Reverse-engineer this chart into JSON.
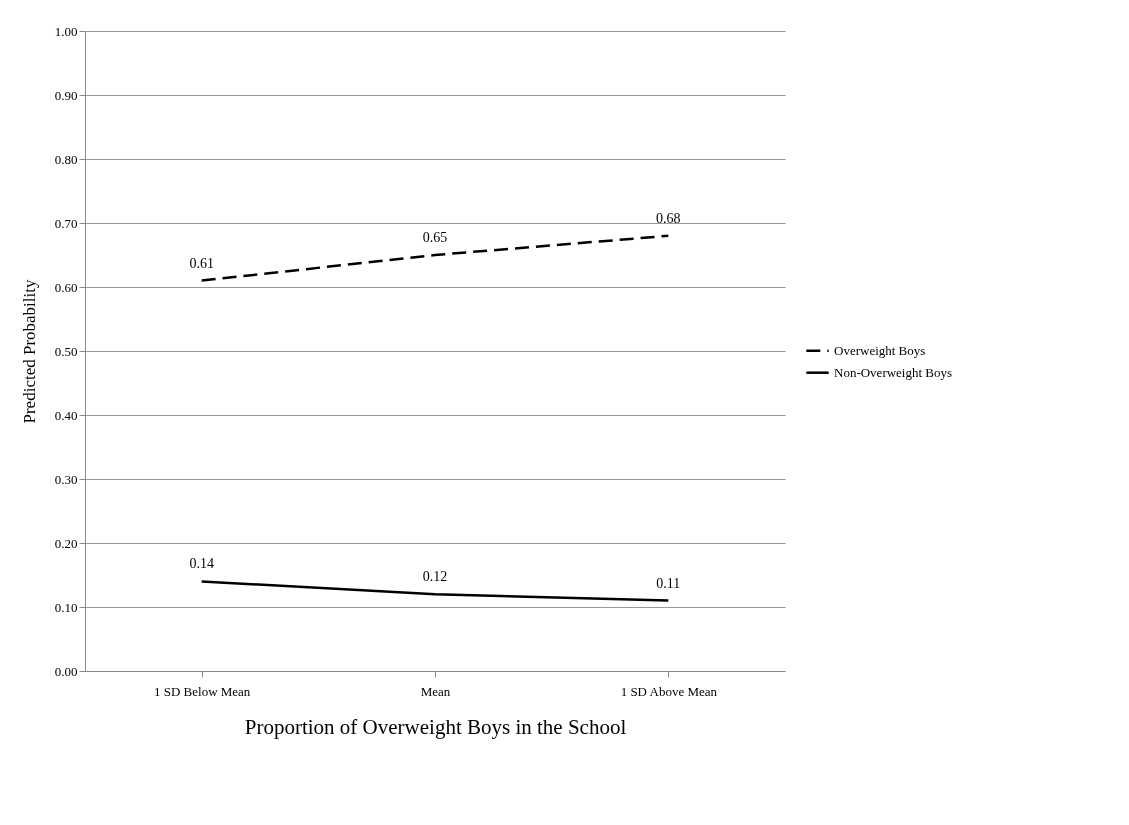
{
  "chart_data": {
    "type": "line",
    "xlabel": "Proportion of Overweight Boys in the School",
    "ylabel": "Predicted Probability",
    "categories": [
      "1 SD Below Mean",
      "Mean",
      "1 SD Above Mean"
    ],
    "series": [
      {
        "name": "Overweight Boys",
        "color": "#000000",
        "line_style": "dashed",
        "values": [
          0.61,
          0.65,
          0.68
        ]
      },
      {
        "name": "Non-Overweight Boys",
        "color": "#000000",
        "line_style": "solid",
        "values": [
          0.14,
          0.12,
          0.11
        ]
      }
    ],
    "ylim": [
      0,
      1
    ],
    "yticks": [
      {
        "value": 0,
        "label": "0.00"
      },
      {
        "value": 0.1,
        "label": "0.10"
      },
      {
        "value": 0.2,
        "label": "0.20"
      },
      {
        "value": 0.3,
        "label": "0.30"
      },
      {
        "value": 0.4,
        "label": "0.40"
      },
      {
        "value": 0.5,
        "label": "0.50"
      },
      {
        "value": 0.6,
        "label": "0.60"
      },
      {
        "value": 0.7,
        "label": "0.70"
      },
      {
        "value": 0.8,
        "label": "0.80"
      },
      {
        "value": 0.9,
        "label": "0.90"
      },
      {
        "value": 1,
        "label": "1.00"
      }
    ],
    "grid": "y",
    "legend": "right",
    "data_labels": true
  }
}
